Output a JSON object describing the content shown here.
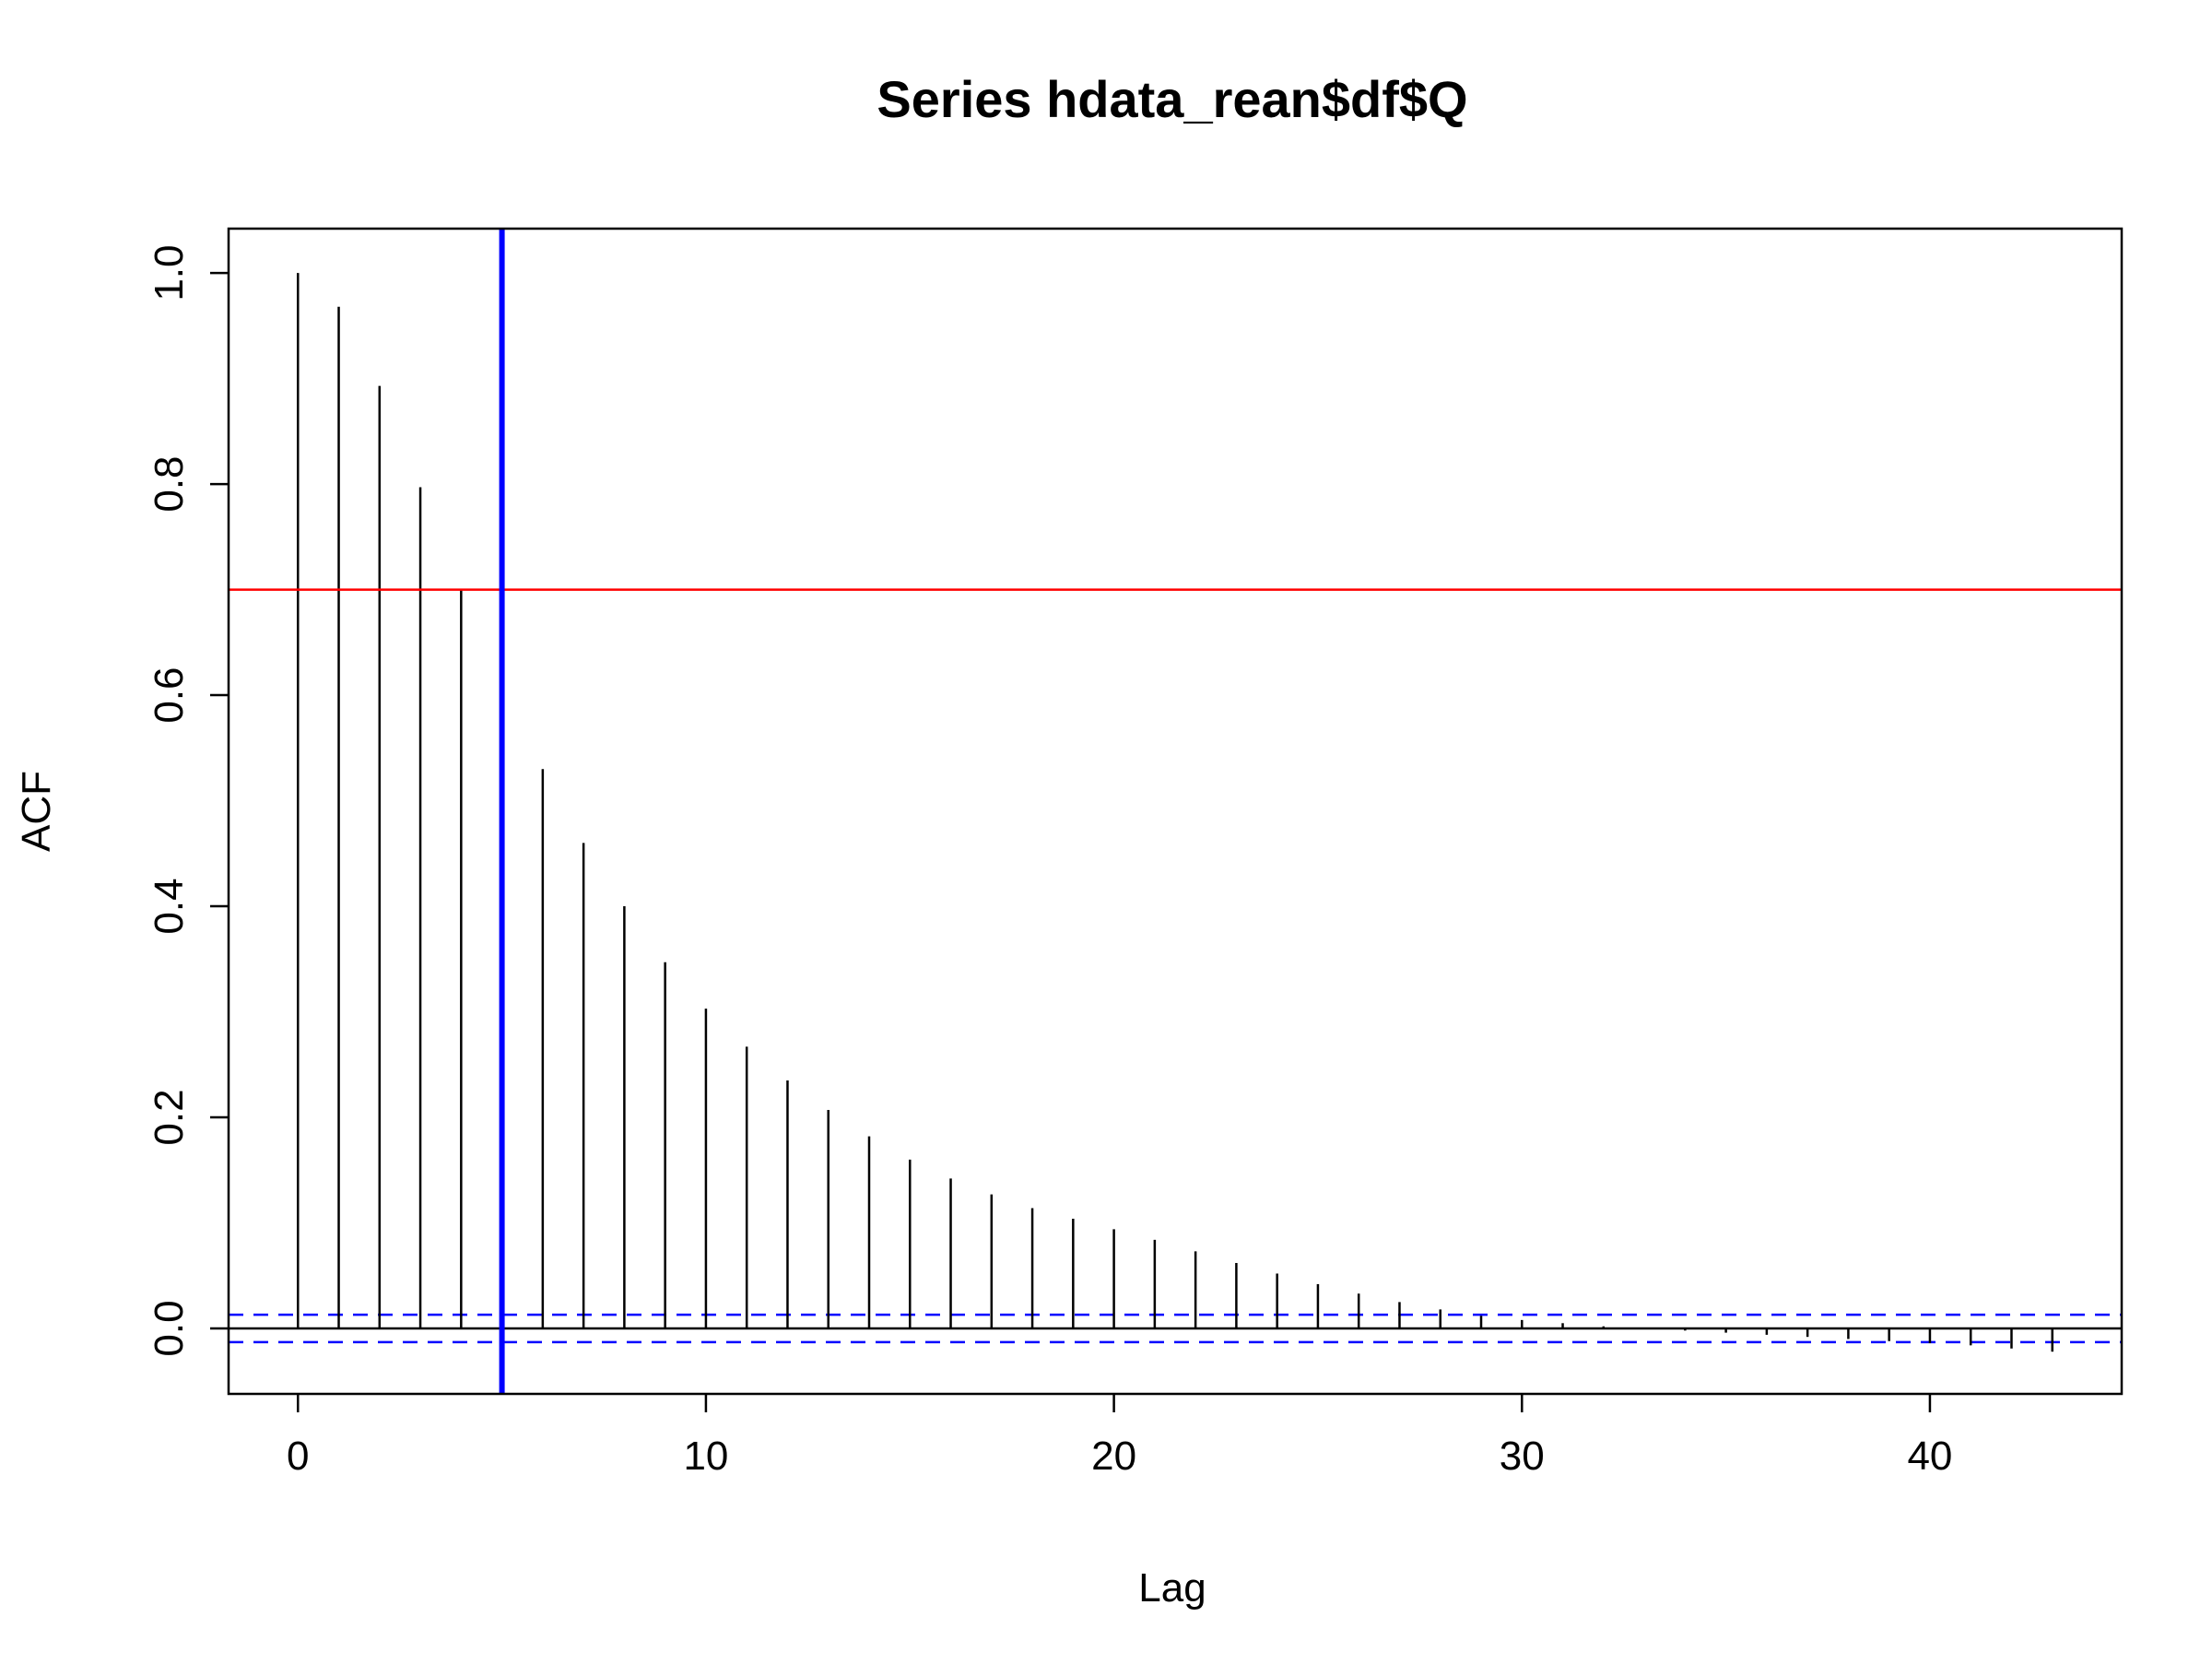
{
  "chart_data": {
    "type": "bar",
    "title": "Series  hdata_rean$df$Q",
    "xlabel": "Lag",
    "ylabel": "ACF",
    "xlim": [
      -1.7,
      44.7
    ],
    "ylim": [
      -0.062,
      1.042
    ],
    "x_ticks": [
      0,
      10,
      20,
      30,
      40
    ],
    "x_tick_labels": [
      "0",
      "10",
      "20",
      "30",
      "40"
    ],
    "y_ticks": [
      0.0,
      0.2,
      0.4,
      0.6,
      0.8,
      1.0
    ],
    "y_tick_labels": [
      "0.0",
      "0.2",
      "0.4",
      "0.6",
      "0.8",
      "1.0"
    ],
    "grid": false,
    "series": [
      {
        "lags": [
          0,
          1,
          2,
          3,
          4,
          5,
          6,
          7,
          8,
          9,
          10,
          11,
          12,
          13,
          14,
          15,
          16,
          17,
          18,
          19,
          20,
          21,
          22,
          23,
          24,
          25,
          26,
          27,
          28,
          29,
          30,
          31,
          32,
          33,
          34,
          35,
          36,
          37,
          38,
          39,
          40,
          41,
          42,
          43
        ],
        "values": [
          1.0,
          0.968,
          0.893,
          0.797,
          0.7,
          0.614,
          0.53,
          0.46,
          0.4,
          0.347,
          0.303,
          0.267,
          0.235,
          0.207,
          0.182,
          0.16,
          0.142,
          0.127,
          0.114,
          0.104,
          0.094,
          0.084,
          0.073,
          0.062,
          0.052,
          0.042,
          0.033,
          0.025,
          0.018,
          0.012,
          0.008,
          0.005,
          0.002,
          0.0,
          -0.002,
          -0.004,
          -0.006,
          -0.008,
          -0.01,
          -0.012,
          -0.014,
          -0.016,
          -0.019,
          -0.022
        ],
        "color": "#000000"
      }
    ],
    "reference_lines": {
      "zero": {
        "y": 0.0,
        "color": "#000000"
      },
      "confidence_bounds": {
        "values": [
          0.013,
          -0.013
        ],
        "color": "#0000ff",
        "style": "dashed"
      },
      "horizontal_marker": {
        "y": 0.7,
        "color": "#ff0000"
      },
      "vertical_marker": {
        "x": 5,
        "color": "#0000ff"
      }
    }
  }
}
